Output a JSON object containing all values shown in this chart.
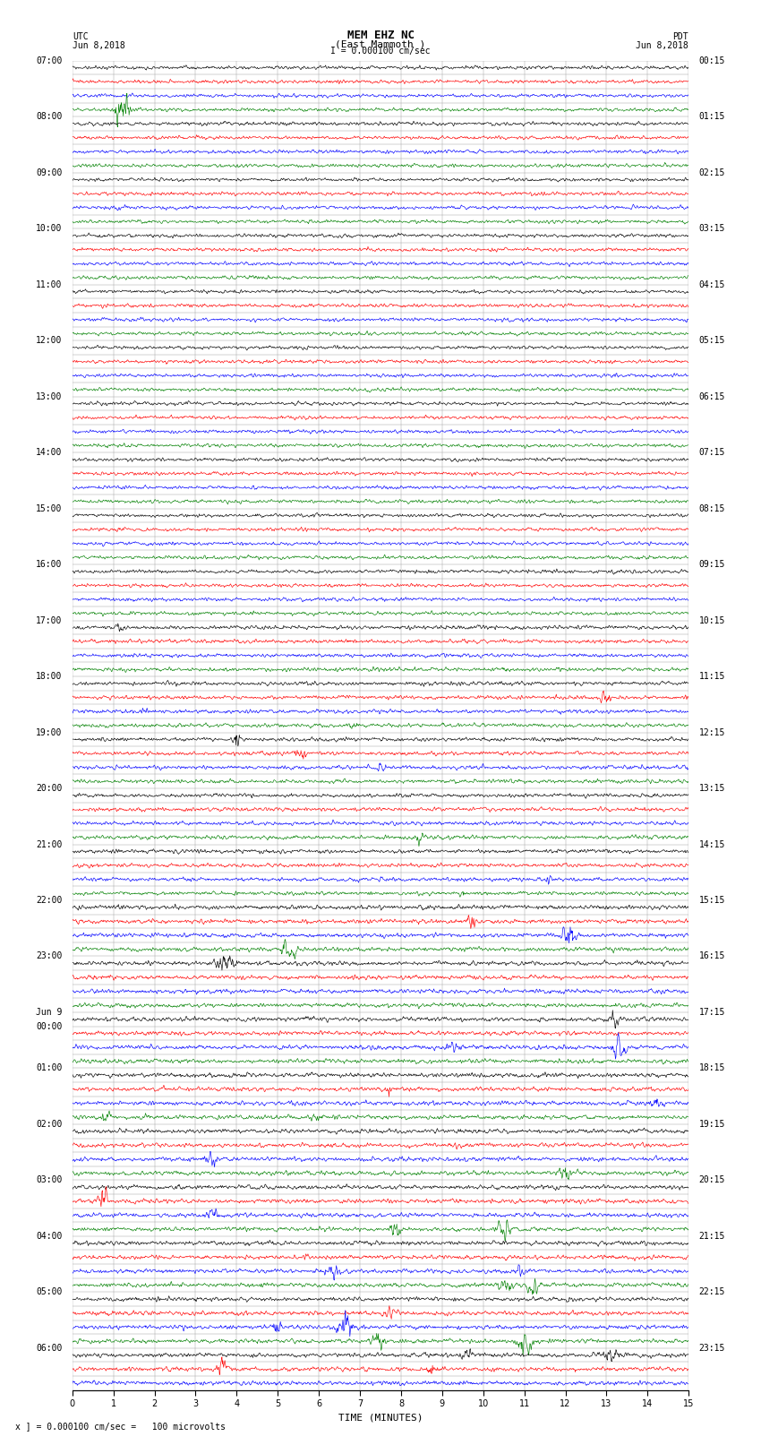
{
  "title_line1": "MEM EHZ NC",
  "title_line2": "(East Mammoth )",
  "title_line3": "I = 0.000100 cm/sec",
  "left_header_line1": "UTC",
  "left_header_line2": "Jun 8,2018",
  "right_header_line1": "PDT",
  "right_header_line2": "Jun 8,2018",
  "bottom_label": "TIME (MINUTES)",
  "bottom_note": "x ] = 0.000100 cm/sec =   100 microvolts",
  "xlim": [
    0,
    15
  ],
  "xticks": [
    0,
    1,
    2,
    3,
    4,
    5,
    6,
    7,
    8,
    9,
    10,
    11,
    12,
    13,
    14,
    15
  ],
  "left_times": [
    "07:00",
    "",
    "",
    "",
    "08:00",
    "",
    "",
    "",
    "09:00",
    "",
    "",
    "",
    "10:00",
    "",
    "",
    "",
    "11:00",
    "",
    "",
    "",
    "12:00",
    "",
    "",
    "",
    "13:00",
    "",
    "",
    "",
    "14:00",
    "",
    "",
    "",
    "15:00",
    "",
    "",
    "",
    "16:00",
    "",
    "",
    "",
    "17:00",
    "",
    "",
    "",
    "18:00",
    "",
    "",
    "",
    "19:00",
    "",
    "",
    "",
    "20:00",
    "",
    "",
    "",
    "21:00",
    "",
    "",
    "",
    "22:00",
    "",
    "",
    "",
    "23:00",
    "",
    "",
    "",
    "Jun 9",
    "00:00",
    "",
    "",
    "01:00",
    "",
    "",
    "",
    "02:00",
    "",
    "",
    "",
    "03:00",
    "",
    "",
    "",
    "04:00",
    "",
    "",
    "",
    "05:00",
    "",
    "",
    "",
    "06:00",
    "",
    ""
  ],
  "right_times": [
    "00:15",
    "",
    "",
    "",
    "01:15",
    "",
    "",
    "",
    "02:15",
    "",
    "",
    "",
    "03:15",
    "",
    "",
    "",
    "04:15",
    "",
    "",
    "",
    "05:15",
    "",
    "",
    "",
    "06:15",
    "",
    "",
    "",
    "07:15",
    "",
    "",
    "",
    "08:15",
    "",
    "",
    "",
    "09:15",
    "",
    "",
    "",
    "10:15",
    "",
    "",
    "",
    "11:15",
    "",
    "",
    "",
    "12:15",
    "",
    "",
    "",
    "13:15",
    "",
    "",
    "",
    "14:15",
    "",
    "",
    "",
    "15:15",
    "",
    "",
    "",
    "16:15",
    "",
    "",
    "",
    "17:15",
    "",
    "",
    "",
    "18:15",
    "",
    "",
    "",
    "19:15",
    "",
    "",
    "",
    "20:15",
    "",
    "",
    "",
    "21:15",
    "",
    "",
    "",
    "22:15",
    "",
    "",
    "",
    "23:15",
    "",
    ""
  ],
  "trace_colors": [
    "black",
    "red",
    "blue",
    "green"
  ],
  "n_rows": 95,
  "n_pts": 1500,
  "background_color": "white",
  "grid_color": "#999999",
  "label_fontsize": 7.0,
  "title_fontsize": 9,
  "tick_fontsize": 7
}
